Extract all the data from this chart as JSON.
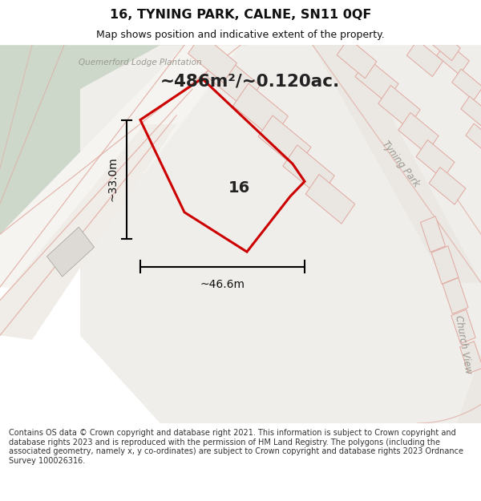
{
  "title": "16, TYNING PARK, CALNE, SN11 0QF",
  "subtitle": "Map shows position and indicative extent of the property.",
  "area_label": "~486m²/~0.120ac.",
  "dim_height": "~33.0m",
  "dim_width": "~46.6m",
  "number_label": "16",
  "plantation_label": "Quemerford Lodge Plantation",
  "street_label1": "Tyning Park",
  "street_label2": "Church View",
  "footer_text": "Contains OS data © Crown copyright and database right 2021. This information is subject to Crown copyright and database rights 2023 and is reproduced with the permission of HM Land Registry. The polygons (including the associated geometry, namely x, y co-ordinates) are subject to Crown copyright and database rights 2023 Ordnance Survey 100026316.",
  "bg_map_color": "#eeeee8",
  "green_color": "#cdd8cb",
  "white_road_color": "#f5f4f0",
  "plot_color": "#cc0000",
  "bldg_fill": "#e8e4e0",
  "bldg_edge": "#e0a8a0",
  "road_edge": "#e0a8a0",
  "title_color": "#111111",
  "dim_color": "#111111",
  "footer_color": "#333333",
  "label_color": "#999990",
  "header_bg": "#ffffff",
  "footer_bg": "#ffffff"
}
